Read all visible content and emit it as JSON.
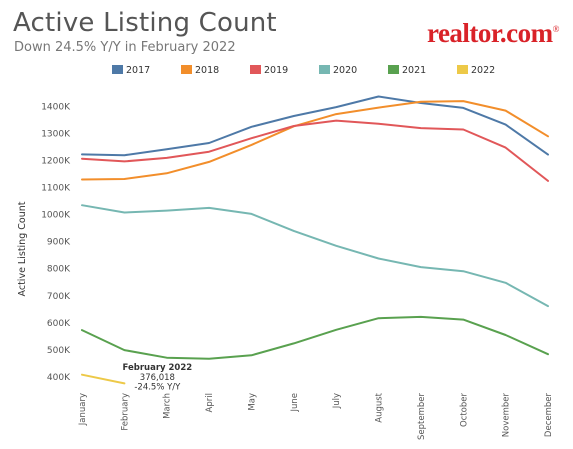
{
  "header": {
    "title": "Active Listing Count",
    "subtitle": "Down 24.5% Y/Y in February 2022",
    "logo": "realtor.com",
    "logo_mark": "®"
  },
  "chart_data": {
    "type": "line",
    "title": "Active Listing Count",
    "subtitle": "Down 24.5% Y/Y in February 2022",
    "ylabel": "Active Listing Count",
    "xlabel": "",
    "categories": [
      "January",
      "February",
      "March",
      "April",
      "May",
      "June",
      "July",
      "August",
      "September",
      "October",
      "November",
      "December"
    ],
    "yticks": [
      "400K",
      "500K",
      "600K",
      "700K",
      "800K",
      "900K",
      "1000K",
      "1100K",
      "1200K",
      "1300K",
      "1400K"
    ],
    "ylim": [
      370000,
      1450000
    ],
    "legend_position": "top",
    "grid": false,
    "series": [
      {
        "name": "2017",
        "color": "#4e79a7",
        "values": [
          1223000,
          1220000,
          1242000,
          1265000,
          1325000,
          1365000,
          1398000,
          1437000,
          1413000,
          1395000,
          1333000,
          1222000
        ]
      },
      {
        "name": "2018",
        "color": "#f28e2b",
        "values": [
          1130000,
          1132000,
          1153000,
          1195000,
          1258000,
          1327000,
          1372000,
          1396000,
          1418000,
          1420000,
          1385000,
          1290000
        ]
      },
      {
        "name": "2019",
        "color": "#e15759",
        "values": [
          1207000,
          1197000,
          1210000,
          1233000,
          1283000,
          1328000,
          1348000,
          1336000,
          1320000,
          1315000,
          1248000,
          1125000
        ]
      },
      {
        "name": "2020",
        "color": "#76b7b2",
        "values": [
          1035000,
          1008000,
          1015000,
          1025000,
          1003000,
          940000,
          885000,
          838000,
          806000,
          791000,
          748000,
          662000
        ]
      },
      {
        "name": "2021",
        "color": "#59a14f",
        "values": [
          573000,
          499000,
          471000,
          467000,
          480000,
          524000,
          574000,
          617000,
          622000,
          612000,
          555000,
          484000
        ]
      },
      {
        "name": "2022",
        "color": "#edc948",
        "values": [
          408000,
          376018,
          null,
          null,
          null,
          null,
          null,
          null,
          null,
          null,
          null,
          null
        ]
      }
    ],
    "annotation": {
      "series": "2022",
      "point_index": 1,
      "lines": [
        "February 2022",
        "376,018",
        "-24.5% Y/Y"
      ]
    }
  }
}
